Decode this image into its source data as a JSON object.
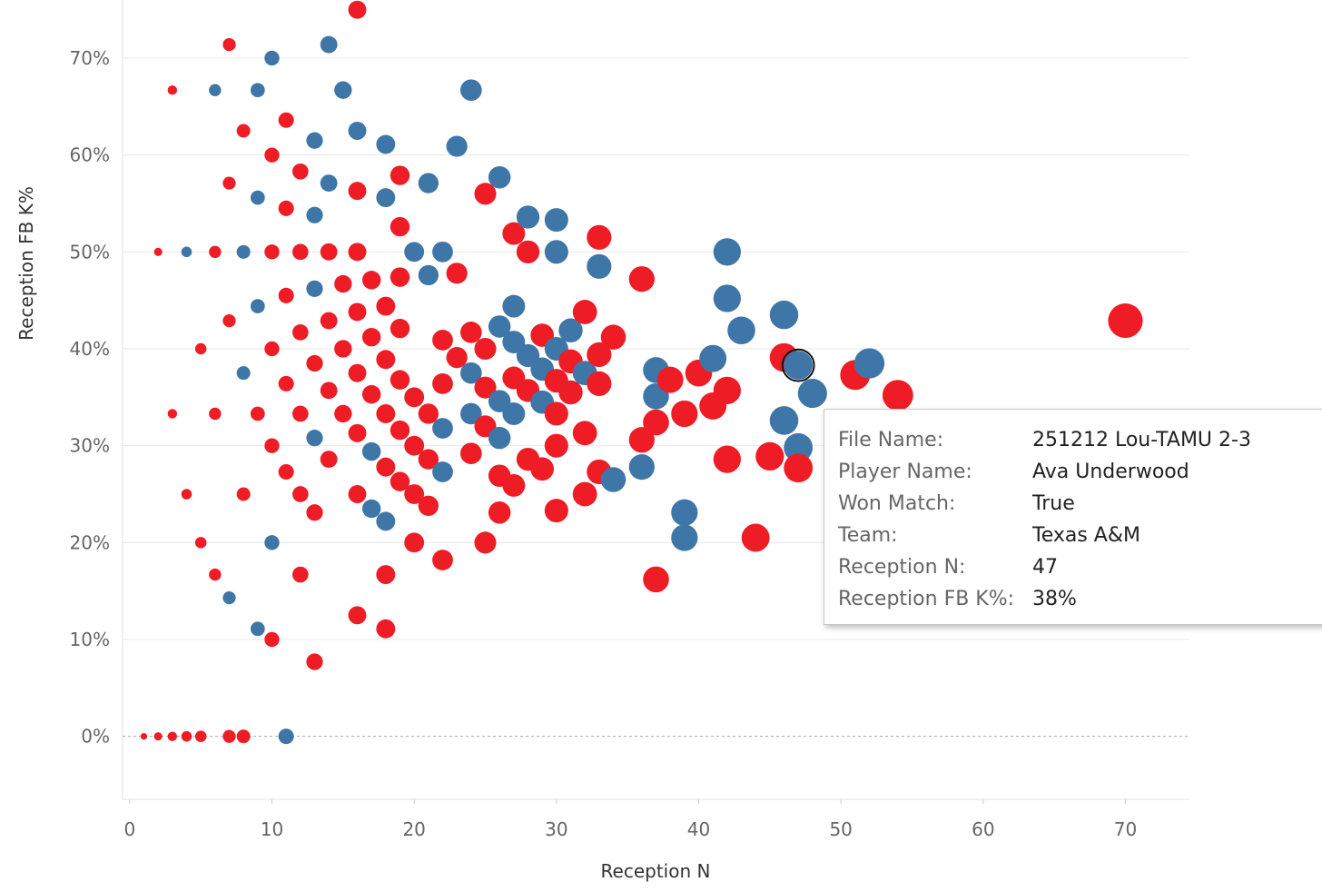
{
  "chart_data": {
    "type": "scatter",
    "xlabel": "Reception N",
    "ylabel": "Reception FB K%",
    "xlim": [
      -0.5,
      74.5
    ],
    "ylim": [
      -6.5,
      76
    ],
    "x_ticks": [
      0,
      10,
      20,
      30,
      40,
      50,
      60,
      70
    ],
    "x_tick_labels": [
      "0",
      "10",
      "20",
      "30",
      "40",
      "50",
      "60",
      "70"
    ],
    "y_ticks": [
      0,
      10,
      20,
      30,
      40,
      50,
      60,
      70
    ],
    "y_tick_labels": [
      "0%",
      "10%",
      "20%",
      "30%",
      "40%",
      "50%",
      "60%",
      "70%"
    ],
    "grid": true,
    "colors": {
      "red": "#ee1c25",
      "blue": "#3f76a8",
      "grid": "#e8e8e8",
      "zero_line": "#aaaaaa"
    },
    "point_size": "proportional to Reception N",
    "points": [
      {
        "x": 1,
        "y": 0,
        "c": "red"
      },
      {
        "x": 2,
        "y": 0,
        "c": "red"
      },
      {
        "x": 3,
        "y": 0,
        "c": "red"
      },
      {
        "x": 4,
        "y": 0,
        "c": "red"
      },
      {
        "x": 5,
        "y": 0,
        "c": "red"
      },
      {
        "x": 7,
        "y": 0,
        "c": "red"
      },
      {
        "x": 8,
        "y": 0,
        "c": "red"
      },
      {
        "x": 11,
        "y": 0,
        "c": "blue"
      },
      {
        "x": 2,
        "y": 50,
        "c": "red"
      },
      {
        "x": 3,
        "y": 66.7,
        "c": "red"
      },
      {
        "x": 3,
        "y": 33.3,
        "c": "red"
      },
      {
        "x": 4,
        "y": 50,
        "c": "blue"
      },
      {
        "x": 4,
        "y": 25,
        "c": "red"
      },
      {
        "x": 5,
        "y": 40,
        "c": "red"
      },
      {
        "x": 5,
        "y": 20,
        "c": "red"
      },
      {
        "x": 6,
        "y": 66.7,
        "c": "blue"
      },
      {
        "x": 6,
        "y": 50,
        "c": "red"
      },
      {
        "x": 6,
        "y": 33.3,
        "c": "red"
      },
      {
        "x": 6,
        "y": 16.7,
        "c": "red"
      },
      {
        "x": 7,
        "y": 71.4,
        "c": "red"
      },
      {
        "x": 7,
        "y": 57.1,
        "c": "red"
      },
      {
        "x": 7,
        "y": 42.9,
        "c": "red"
      },
      {
        "x": 7,
        "y": 14.3,
        "c": "blue"
      },
      {
        "x": 8,
        "y": 62.5,
        "c": "red"
      },
      {
        "x": 8,
        "y": 50,
        "c": "blue"
      },
      {
        "x": 8,
        "y": 37.5,
        "c": "blue"
      },
      {
        "x": 8,
        "y": 25,
        "c": "red"
      },
      {
        "x": 9,
        "y": 66.7,
        "c": "blue"
      },
      {
        "x": 9,
        "y": 55.6,
        "c": "blue"
      },
      {
        "x": 9,
        "y": 44.4,
        "c": "blue"
      },
      {
        "x": 9,
        "y": 33.3,
        "c": "red"
      },
      {
        "x": 9,
        "y": 11.1,
        "c": "blue"
      },
      {
        "x": 10,
        "y": 70,
        "c": "blue"
      },
      {
        "x": 10,
        "y": 60,
        "c": "red"
      },
      {
        "x": 10,
        "y": 50,
        "c": "red"
      },
      {
        "x": 10,
        "y": 40,
        "c": "red"
      },
      {
        "x": 10,
        "y": 30,
        "c": "red"
      },
      {
        "x": 10,
        "y": 20,
        "c": "blue"
      },
      {
        "x": 10,
        "y": 10,
        "c": "red"
      },
      {
        "x": 11,
        "y": 63.6,
        "c": "red"
      },
      {
        "x": 11,
        "y": 54.5,
        "c": "red"
      },
      {
        "x": 11,
        "y": 45.5,
        "c": "red"
      },
      {
        "x": 11,
        "y": 36.4,
        "c": "red"
      },
      {
        "x": 11,
        "y": 27.3,
        "c": "red"
      },
      {
        "x": 12,
        "y": 58.3,
        "c": "red"
      },
      {
        "x": 12,
        "y": 50,
        "c": "red"
      },
      {
        "x": 12,
        "y": 41.7,
        "c": "red"
      },
      {
        "x": 12,
        "y": 33.3,
        "c": "red"
      },
      {
        "x": 12,
        "y": 25,
        "c": "red"
      },
      {
        "x": 12,
        "y": 16.7,
        "c": "red"
      },
      {
        "x": 13,
        "y": 61.5,
        "c": "blue"
      },
      {
        "x": 13,
        "y": 53.8,
        "c": "blue"
      },
      {
        "x": 13,
        "y": 46.2,
        "c": "blue"
      },
      {
        "x": 13,
        "y": 38.5,
        "c": "red"
      },
      {
        "x": 13,
        "y": 30.8,
        "c": "blue"
      },
      {
        "x": 13,
        "y": 23.1,
        "c": "red"
      },
      {
        "x": 13,
        "y": 7.7,
        "c": "red"
      },
      {
        "x": 14,
        "y": 71.4,
        "c": "blue"
      },
      {
        "x": 14,
        "y": 57.1,
        "c": "blue"
      },
      {
        "x": 14,
        "y": 50,
        "c": "red"
      },
      {
        "x": 14,
        "y": 42.9,
        "c": "red"
      },
      {
        "x": 14,
        "y": 35.7,
        "c": "red"
      },
      {
        "x": 14,
        "y": 28.6,
        "c": "red"
      },
      {
        "x": 15,
        "y": 66.7,
        "c": "blue"
      },
      {
        "x": 15,
        "y": 46.7,
        "c": "red"
      },
      {
        "x": 15,
        "y": 40,
        "c": "red"
      },
      {
        "x": 15,
        "y": 33.3,
        "c": "red"
      },
      {
        "x": 16,
        "y": 75,
        "c": "red"
      },
      {
        "x": 16,
        "y": 62.5,
        "c": "blue"
      },
      {
        "x": 16,
        "y": 56.3,
        "c": "red"
      },
      {
        "x": 16,
        "y": 50,
        "c": "red"
      },
      {
        "x": 16,
        "y": 43.8,
        "c": "red"
      },
      {
        "x": 16,
        "y": 37.5,
        "c": "red"
      },
      {
        "x": 16,
        "y": 31.3,
        "c": "red"
      },
      {
        "x": 16,
        "y": 25,
        "c": "red"
      },
      {
        "x": 16,
        "y": 12.5,
        "c": "red"
      },
      {
        "x": 17,
        "y": 47.1,
        "c": "red"
      },
      {
        "x": 17,
        "y": 41.2,
        "c": "red"
      },
      {
        "x": 17,
        "y": 35.3,
        "c": "red"
      },
      {
        "x": 17,
        "y": 29.4,
        "c": "blue"
      },
      {
        "x": 17,
        "y": 23.5,
        "c": "blue"
      },
      {
        "x": 18,
        "y": 61.1,
        "c": "blue"
      },
      {
        "x": 18,
        "y": 55.6,
        "c": "blue"
      },
      {
        "x": 18,
        "y": 44.4,
        "c": "red"
      },
      {
        "x": 18,
        "y": 38.9,
        "c": "red"
      },
      {
        "x": 18,
        "y": 33.3,
        "c": "red"
      },
      {
        "x": 18,
        "y": 27.8,
        "c": "red"
      },
      {
        "x": 18,
        "y": 22.2,
        "c": "blue"
      },
      {
        "x": 18,
        "y": 16.7,
        "c": "red"
      },
      {
        "x": 18,
        "y": 11.1,
        "c": "red"
      },
      {
        "x": 19,
        "y": 57.9,
        "c": "red"
      },
      {
        "x": 19,
        "y": 52.6,
        "c": "red"
      },
      {
        "x": 19,
        "y": 47.4,
        "c": "red"
      },
      {
        "x": 19,
        "y": 42.1,
        "c": "red"
      },
      {
        "x": 19,
        "y": 36.8,
        "c": "red"
      },
      {
        "x": 19,
        "y": 31.6,
        "c": "red"
      },
      {
        "x": 19,
        "y": 26.3,
        "c": "red"
      },
      {
        "x": 20,
        "y": 50,
        "c": "blue"
      },
      {
        "x": 20,
        "y": 35,
        "c": "red"
      },
      {
        "x": 20,
        "y": 30,
        "c": "red"
      },
      {
        "x": 20,
        "y": 25,
        "c": "red"
      },
      {
        "x": 20,
        "y": 20,
        "c": "red"
      },
      {
        "x": 21,
        "y": 57.1,
        "c": "blue"
      },
      {
        "x": 21,
        "y": 47.6,
        "c": "blue"
      },
      {
        "x": 21,
        "y": 33.3,
        "c": "red"
      },
      {
        "x": 21,
        "y": 28.6,
        "c": "red"
      },
      {
        "x": 21,
        "y": 23.8,
        "c": "red"
      },
      {
        "x": 22,
        "y": 50,
        "c": "blue"
      },
      {
        "x": 22,
        "y": 40.9,
        "c": "red"
      },
      {
        "x": 22,
        "y": 36.4,
        "c": "red"
      },
      {
        "x": 22,
        "y": 31.8,
        "c": "blue"
      },
      {
        "x": 22,
        "y": 27.3,
        "c": "blue"
      },
      {
        "x": 22,
        "y": 18.2,
        "c": "red"
      },
      {
        "x": 23,
        "y": 60.9,
        "c": "blue"
      },
      {
        "x": 23,
        "y": 47.8,
        "c": "red"
      },
      {
        "x": 23,
        "y": 39.1,
        "c": "red"
      },
      {
        "x": 24,
        "y": 66.7,
        "c": "blue"
      },
      {
        "x": 24,
        "y": 41.7,
        "c": "red"
      },
      {
        "x": 24,
        "y": 37.5,
        "c": "blue"
      },
      {
        "x": 24,
        "y": 33.3,
        "c": "blue"
      },
      {
        "x": 24,
        "y": 29.2,
        "c": "red"
      },
      {
        "x": 25,
        "y": 56,
        "c": "red"
      },
      {
        "x": 25,
        "y": 40,
        "c": "red"
      },
      {
        "x": 25,
        "y": 36,
        "c": "red"
      },
      {
        "x": 25,
        "y": 32,
        "c": "red"
      },
      {
        "x": 25,
        "y": 20,
        "c": "red"
      },
      {
        "x": 26,
        "y": 57.7,
        "c": "blue"
      },
      {
        "x": 26,
        "y": 42.3,
        "c": "blue"
      },
      {
        "x": 26,
        "y": 34.6,
        "c": "blue"
      },
      {
        "x": 26,
        "y": 30.8,
        "c": "blue"
      },
      {
        "x": 26,
        "y": 26.9,
        "c": "red"
      },
      {
        "x": 26,
        "y": 23.1,
        "c": "red"
      },
      {
        "x": 27,
        "y": 51.9,
        "c": "red"
      },
      {
        "x": 27,
        "y": 44.4,
        "c": "blue"
      },
      {
        "x": 27,
        "y": 40.7,
        "c": "blue"
      },
      {
        "x": 27,
        "y": 37,
        "c": "red"
      },
      {
        "x": 27,
        "y": 33.3,
        "c": "blue"
      },
      {
        "x": 27,
        "y": 25.9,
        "c": "red"
      },
      {
        "x": 28,
        "y": 53.6,
        "c": "blue"
      },
      {
        "x": 28,
        "y": 50,
        "c": "red"
      },
      {
        "x": 28,
        "y": 39.3,
        "c": "blue"
      },
      {
        "x": 28,
        "y": 35.7,
        "c": "red"
      },
      {
        "x": 28,
        "y": 28.6,
        "c": "red"
      },
      {
        "x": 29,
        "y": 41.4,
        "c": "red"
      },
      {
        "x": 29,
        "y": 37.9,
        "c": "blue"
      },
      {
        "x": 29,
        "y": 34.5,
        "c": "blue"
      },
      {
        "x": 29,
        "y": 27.6,
        "c": "red"
      },
      {
        "x": 30,
        "y": 53.3,
        "c": "blue"
      },
      {
        "x": 30,
        "y": 50,
        "c": "blue"
      },
      {
        "x": 30,
        "y": 40,
        "c": "blue"
      },
      {
        "x": 30,
        "y": 36.7,
        "c": "red"
      },
      {
        "x": 30,
        "y": 33.3,
        "c": "red"
      },
      {
        "x": 30,
        "y": 30,
        "c": "red"
      },
      {
        "x": 30,
        "y": 23.3,
        "c": "red"
      },
      {
        "x": 31,
        "y": 41.9,
        "c": "blue"
      },
      {
        "x": 31,
        "y": 38.7,
        "c": "red"
      },
      {
        "x": 31,
        "y": 35.5,
        "c": "red"
      },
      {
        "x": 32,
        "y": 43.8,
        "c": "red"
      },
      {
        "x": 32,
        "y": 37.5,
        "c": "blue"
      },
      {
        "x": 32,
        "y": 31.3,
        "c": "red"
      },
      {
        "x": 32,
        "y": 25,
        "c": "red"
      },
      {
        "x": 33,
        "y": 51.5,
        "c": "red"
      },
      {
        "x": 33,
        "y": 48.5,
        "c": "blue"
      },
      {
        "x": 33,
        "y": 39.4,
        "c": "red"
      },
      {
        "x": 33,
        "y": 36.4,
        "c": "red"
      },
      {
        "x": 33,
        "y": 27.3,
        "c": "red"
      },
      {
        "x": 34,
        "y": 41.2,
        "c": "red"
      },
      {
        "x": 34,
        "y": 26.5,
        "c": "blue"
      },
      {
        "x": 36,
        "y": 47.2,
        "c": "red"
      },
      {
        "x": 36,
        "y": 30.6,
        "c": "red"
      },
      {
        "x": 36,
        "y": 27.8,
        "c": "blue"
      },
      {
        "x": 37,
        "y": 37.8,
        "c": "blue"
      },
      {
        "x": 37,
        "y": 35.1,
        "c": "blue"
      },
      {
        "x": 37,
        "y": 32.4,
        "c": "red"
      },
      {
        "x": 37,
        "y": 16.2,
        "c": "red"
      },
      {
        "x": 38,
        "y": 36.8,
        "c": "red"
      },
      {
        "x": 39,
        "y": 33.3,
        "c": "red"
      },
      {
        "x": 39,
        "y": 23.1,
        "c": "blue"
      },
      {
        "x": 39,
        "y": 20.5,
        "c": "blue"
      },
      {
        "x": 40,
        "y": 37.5,
        "c": "red"
      },
      {
        "x": 41,
        "y": 39,
        "c": "blue"
      },
      {
        "x": 41,
        "y": 34.1,
        "c": "red"
      },
      {
        "x": 42,
        "y": 50,
        "c": "blue"
      },
      {
        "x": 42,
        "y": 45.2,
        "c": "blue"
      },
      {
        "x": 42,
        "y": 35.7,
        "c": "red"
      },
      {
        "x": 42,
        "y": 28.6,
        "c": "red"
      },
      {
        "x": 43,
        "y": 41.9,
        "c": "blue"
      },
      {
        "x": 44,
        "y": 20.5,
        "c": "red"
      },
      {
        "x": 45,
        "y": 28.9,
        "c": "red"
      },
      {
        "x": 46,
        "y": 43.5,
        "c": "blue"
      },
      {
        "x": 46,
        "y": 39.1,
        "c": "red"
      },
      {
        "x": 46,
        "y": 32.6,
        "c": "blue"
      },
      {
        "x": 47,
        "y": 38.3,
        "c": "blue",
        "highlight": true
      },
      {
        "x": 47,
        "y": 29.8,
        "c": "blue"
      },
      {
        "x": 47,
        "y": 27.7,
        "c": "red"
      },
      {
        "x": 48,
        "y": 35.4,
        "c": "blue"
      },
      {
        "x": 51,
        "y": 37.3,
        "c": "red"
      },
      {
        "x": 52,
        "y": 38.5,
        "c": "blue"
      },
      {
        "x": 54,
        "y": 35.2,
        "c": "red"
      },
      {
        "x": 70,
        "y": 42.9,
        "c": "red"
      }
    ]
  },
  "tooltip": {
    "rows": [
      {
        "key": "File Name:",
        "value": "251212 Lou-TAMU 2-3"
      },
      {
        "key": "Player Name:",
        "value": "Ava Underwood"
      },
      {
        "key": "Won Match:",
        "value": "True"
      },
      {
        "key": "Team:",
        "value": "Texas A&M"
      },
      {
        "key": "Reception N:",
        "value": "47"
      },
      {
        "key": "Reception FB K%:",
        "value": "38%"
      }
    ]
  }
}
